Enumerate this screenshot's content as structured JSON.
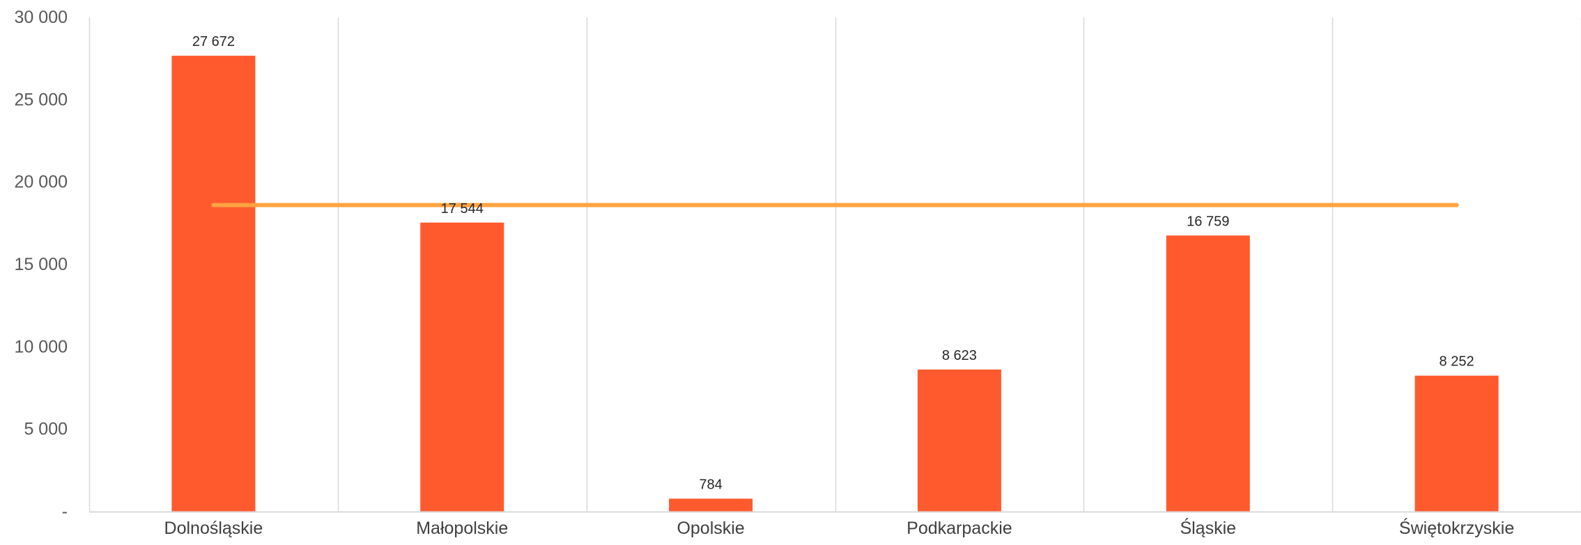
{
  "chart_data": {
    "type": "bar",
    "title": "",
    "xlabel": "",
    "ylabel": "",
    "categories": [
      "Dolnośląskie",
      "Małopolskie",
      "Opolskie",
      "Podkarpackie",
      "Śląskie",
      "Świętokrzyskie"
    ],
    "series": [
      {
        "type": "bar",
        "values": [
          27672,
          17544,
          784,
          8623,
          16759,
          8252
        ],
        "data_labels": [
          "27 672",
          "17 544",
          "784",
          "8 623",
          "16 759",
          "8 252"
        ],
        "color": "#FF5A2D"
      },
      {
        "type": "line",
        "values": [
          18606,
          18606,
          18606,
          18606,
          18606,
          18606
        ],
        "color": "#FFA340"
      }
    ],
    "ylim": [
      0,
      30000
    ],
    "yticks": [
      0,
      5000,
      10000,
      15000,
      20000,
      25000,
      30000
    ],
    "ytick_labels": [
      "-",
      "5 000",
      "10 000",
      "15 000",
      "20 000",
      "25 000",
      "30 000"
    ],
    "vertical_gridlines": true,
    "legend": "none"
  }
}
